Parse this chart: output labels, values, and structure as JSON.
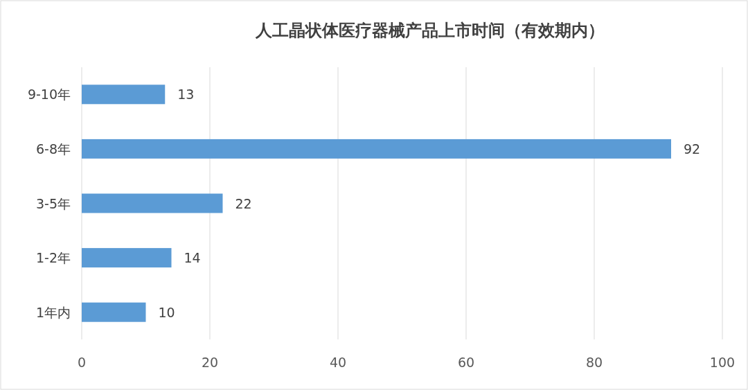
{
  "chart_data": {
    "type": "bar",
    "orientation": "horizontal",
    "title": "人工晶状体医疗器械产品上市时间（有效期内）",
    "categories": [
      "9-10年",
      "6-8年",
      "3-5年",
      "1-2年",
      "1年内"
    ],
    "values": [
      13,
      92,
      22,
      14,
      10
    ],
    "color": "#5b9bd5",
    "xlim": [
      0,
      100
    ],
    "xticks": [
      0,
      20,
      40,
      60,
      80,
      100
    ],
    "grid": "x",
    "data_labels": true
  }
}
